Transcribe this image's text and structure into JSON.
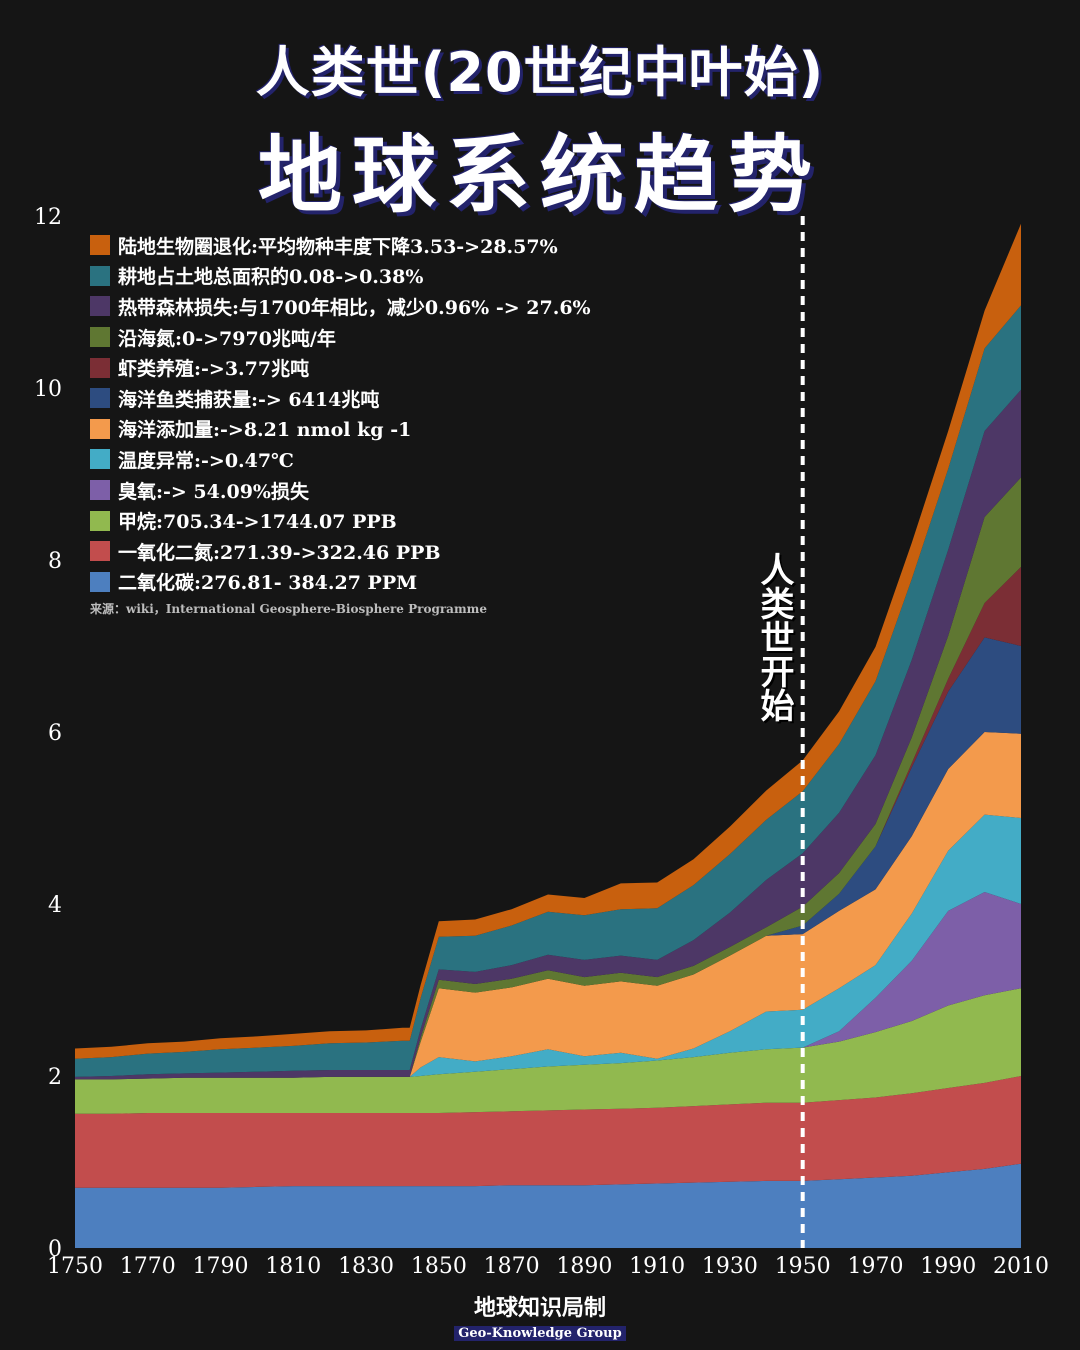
{
  "title_line1": "人类世(20世纪中叶始)",
  "title_line2": "地球系统趋势",
  "source": "来源：wiki，International Geosphere-Biosphere Programme",
  "marker_label": "人类世开始",
  "footer": {
    "cn": "地球知识局制",
    "en": "Geo-Knowledge Group"
  },
  "chart_data": {
    "type": "area",
    "stacked": true,
    "x": [
      1750,
      1760,
      1770,
      1780,
      1790,
      1800,
      1810,
      1820,
      1830,
      1840,
      1842,
      1845,
      1850,
      1860,
      1870,
      1880,
      1890,
      1900,
      1910,
      1920,
      1930,
      1940,
      1950,
      1960,
      1970,
      1980,
      1990,
      2000,
      2010
    ],
    "xticks": [
      1750,
      1770,
      1790,
      1810,
      1830,
      1850,
      1870,
      1890,
      1910,
      1930,
      1950,
      1970,
      1990,
      2010
    ],
    "yticks": [
      0,
      2,
      4,
      6,
      8,
      10,
      12
    ],
    "ylim": [
      0,
      12
    ],
    "xlim": [
      1750,
      2010
    ],
    "grid": false,
    "legend_position": "top-left",
    "vline": {
      "x": 1950,
      "style": "dashed"
    },
    "series": [
      {
        "name": "二氧化碳:276.81- 384.27 PPM",
        "color": "#4d7fbf",
        "values": [
          0.7,
          0.7,
          0.7,
          0.7,
          0.7,
          0.71,
          0.72,
          0.72,
          0.72,
          0.72,
          0.72,
          0.72,
          0.72,
          0.72,
          0.73,
          0.73,
          0.73,
          0.74,
          0.75,
          0.76,
          0.77,
          0.78,
          0.78,
          0.8,
          0.82,
          0.84,
          0.88,
          0.92,
          0.98
        ]
      },
      {
        "name": "一氧化二氮:271.39->322.46 PPB",
        "color": "#c24d4d",
        "values": [
          0.86,
          0.86,
          0.87,
          0.87,
          0.87,
          0.86,
          0.85,
          0.85,
          0.85,
          0.85,
          0.85,
          0.85,
          0.85,
          0.86,
          0.86,
          0.87,
          0.88,
          0.88,
          0.88,
          0.89,
          0.9,
          0.91,
          0.91,
          0.92,
          0.93,
          0.96,
          0.98,
          1.0,
          1.02
        ]
      },
      {
        "name": "甲烷:705.34->1744.07 PPB",
        "color": "#91b94f",
        "values": [
          0.4,
          0.4,
          0.4,
          0.41,
          0.41,
          0.41,
          0.41,
          0.42,
          0.42,
          0.42,
          0.42,
          0.43,
          0.45,
          0.47,
          0.49,
          0.51,
          0.52,
          0.53,
          0.55,
          0.57,
          0.6,
          0.62,
          0.64,
          0.68,
          0.76,
          0.84,
          0.96,
          1.02,
          1.02
        ]
      },
      {
        "name": "臭氧:-> 54.09%损失",
        "color": "#7d5fa8",
        "values": [
          0,
          0,
          0,
          0,
          0,
          0,
          0,
          0,
          0,
          0,
          0,
          0,
          0,
          0,
          0,
          0,
          0,
          0,
          0,
          0,
          0,
          0,
          0,
          0.12,
          0.4,
          0.7,
          1.1,
          1.2,
          0.98
        ]
      },
      {
        "name": "温度异常:->0.47℃",
        "color": "#43acc6",
        "values": [
          0,
          0,
          0,
          0,
          0,
          0,
          0,
          0,
          0,
          0,
          0,
          0.1,
          0.2,
          0.12,
          0.15,
          0.2,
          0.1,
          0.12,
          0.02,
          0.1,
          0.25,
          0.44,
          0.44,
          0.5,
          0.38,
          0.55,
          0.7,
          0.9,
          1.0
        ]
      },
      {
        "name": "海洋添加量:->8.21 nmol kg -1",
        "color": "#f39a4c",
        "values": [
          0,
          0,
          0,
          0,
          0,
          0,
          0,
          0,
          0,
          0,
          0,
          0.3,
          0.8,
          0.8,
          0.8,
          0.82,
          0.82,
          0.83,
          0.85,
          0.86,
          0.88,
          0.88,
          0.88,
          0.9,
          0.88,
          0.9,
          0.95,
          0.96,
          0.98
        ]
      },
      {
        "name": "海洋鱼类捕获量:-> 6414兆吨",
        "color": "#2d4c80",
        "values": [
          0,
          0,
          0,
          0,
          0,
          0,
          0,
          0,
          0,
          0,
          0,
          0,
          0,
          0,
          0,
          0,
          0,
          0,
          0,
          0,
          0,
          0,
          0.1,
          0.2,
          0.5,
          0.8,
          0.9,
          1.1,
          1.02
        ]
      },
      {
        "name": "虾类养殖:->3.77兆吨",
        "color": "#7b2e35",
        "values": [
          0,
          0,
          0,
          0,
          0,
          0,
          0,
          0,
          0,
          0,
          0,
          0,
          0,
          0,
          0,
          0,
          0,
          0,
          0,
          0,
          0,
          0,
          0,
          0,
          0,
          0.05,
          0.15,
          0.4,
          0.92
        ]
      },
      {
        "name": "沿海氮:0->7970兆吨/年",
        "color": "#5f7732",
        "values": [
          0,
          0,
          0,
          0,
          0,
          0,
          0,
          0,
          0,
          0,
          0,
          0.05,
          0.1,
          0.1,
          0.1,
          0.1,
          0.1,
          0.1,
          0.1,
          0.1,
          0.1,
          0.1,
          0.22,
          0.24,
          0.26,
          0.3,
          0.5,
          1.0,
          1.04
        ]
      },
      {
        "name": "热带森林损失:与1700年相比，减少0.96% -> 27.6%",
        "color": "#4d3766",
        "values": [
          0.03,
          0.04,
          0.05,
          0.05,
          0.06,
          0.07,
          0.08,
          0.08,
          0.08,
          0.08,
          0.08,
          0.1,
          0.12,
          0.14,
          0.16,
          0.18,
          0.2,
          0.2,
          0.2,
          0.3,
          0.4,
          0.55,
          0.62,
          0.7,
          0.8,
          0.9,
          1.0,
          1.0,
          1.02
        ]
      },
      {
        "name": "耕地占土地总面积的0.08->0.38%",
        "color": "#2a7280",
        "values": [
          0.21,
          0.22,
          0.24,
          0.25,
          0.27,
          0.28,
          0.29,
          0.31,
          0.32,
          0.34,
          0.34,
          0.36,
          0.38,
          0.42,
          0.46,
          0.5,
          0.52,
          0.54,
          0.6,
          0.64,
          0.68,
          0.7,
          0.72,
          0.8,
          0.86,
          0.94,
          0.94,
          0.96,
          0.98
        ]
      },
      {
        "name": "陆地生物圈退化:平均物种丰度下降3.53->28.57%",
        "color": "#c8600e",
        "values": [
          0.12,
          0.12,
          0.12,
          0.12,
          0.13,
          0.13,
          0.14,
          0.14,
          0.14,
          0.15,
          0.15,
          0.15,
          0.18,
          0.19,
          0.19,
          0.2,
          0.2,
          0.3,
          0.3,
          0.3,
          0.32,
          0.34,
          0.36,
          0.38,
          0.4,
          0.42,
          0.44,
          0.44,
          0.95
        ]
      }
    ]
  }
}
